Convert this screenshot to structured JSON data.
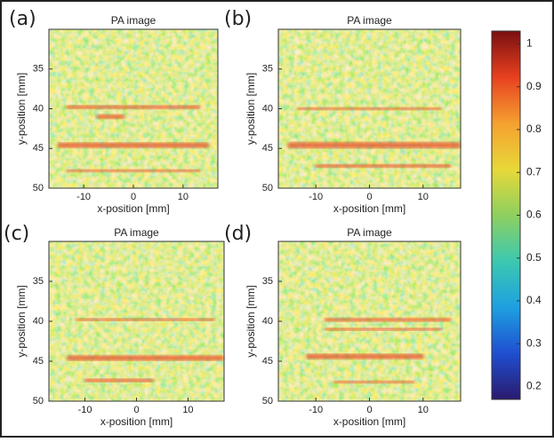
{
  "chart_data": [
    {
      "type": "image",
      "panel_label": "(a)",
      "title": "PA image",
      "x_label": "x-position [mm]",
      "y_label": "y-position [mm]",
      "xlim": [
        -17,
        17
      ],
      "ylim": [
        30,
        50
      ],
      "xticks": [
        -10,
        0,
        10
      ],
      "yticks": [
        35,
        40,
        45,
        50
      ]
    },
    {
      "type": "image",
      "panel_label": "(b)",
      "title": "PA image",
      "x_label": "x-position [mm]",
      "y_label": "y-position [mm]",
      "xlim": [
        -17,
        17
      ],
      "ylim": [
        30,
        50
      ],
      "xticks": [
        -10,
        0,
        10
      ],
      "yticks": [
        35,
        40,
        45,
        50
      ]
    },
    {
      "type": "image",
      "panel_label": "(c)",
      "title": "PA image",
      "x_label": "x-position [mm]",
      "y_label": "y-position [mm]",
      "xlim": [
        -17,
        17
      ],
      "ylim": [
        30,
        50
      ],
      "xticks": [
        -10,
        0,
        10
      ],
      "yticks": [
        35,
        40,
        45,
        50
      ]
    },
    {
      "type": "image",
      "panel_label": "(d)",
      "title": "PA image",
      "x_label": "x-position [mm]",
      "y_label": "y-position [mm]",
      "xlim": [
        -17,
        17
      ],
      "ylim": [
        30,
        50
      ],
      "xticks": [
        -10,
        0,
        10
      ],
      "yticks": [
        35,
        40,
        45,
        50
      ]
    }
  ],
  "colorbar": {
    "clim": [
      0.17,
      1.03
    ],
    "ticks": [
      0.2,
      0.3,
      0.4,
      0.5,
      0.6,
      0.7,
      0.8,
      0.9,
      1
    ],
    "colormap": [
      "#2a1a6e",
      "#1f4fd0",
      "#1ea0e0",
      "#3cc8b0",
      "#8ed060",
      "#e8d838",
      "#f5a030",
      "#e84020",
      "#7a1010"
    ]
  }
}
